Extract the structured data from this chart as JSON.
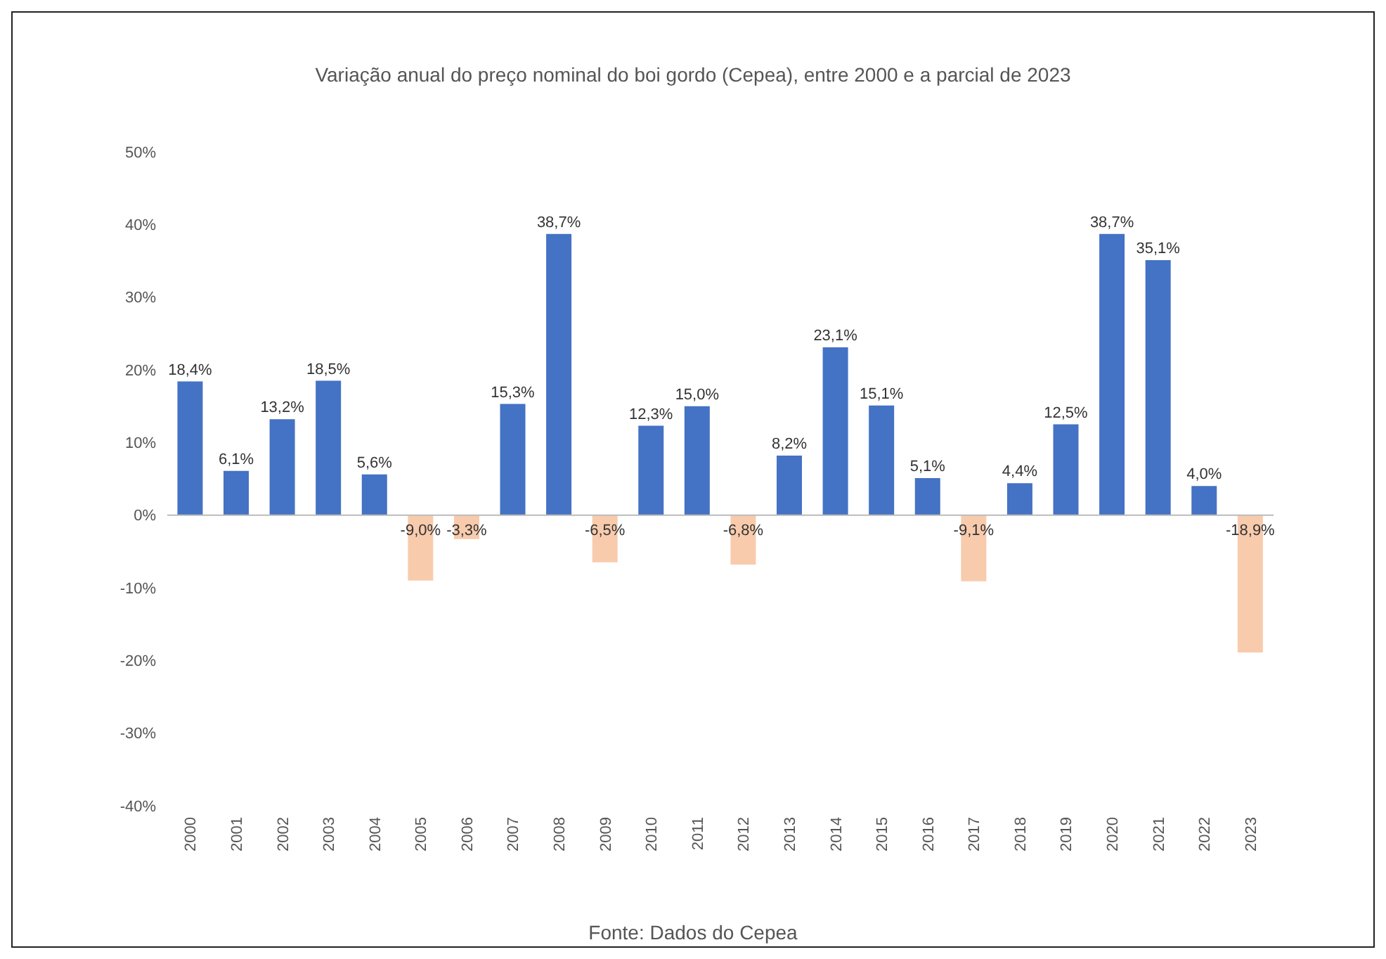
{
  "chart_data": {
    "type": "bar",
    "title": "Variação anual do preço nominal do boi gordo (Cepea), entre 2000 e a parcial de 2023",
    "categories": [
      "2000",
      "2001",
      "2002",
      "2003",
      "2004",
      "2005",
      "2006",
      "2007",
      "2008",
      "2009",
      "2010",
      "2011",
      "2012",
      "2013",
      "2014",
      "2015",
      "2016",
      "2017",
      "2018",
      "2019",
      "2020",
      "2021",
      "2022",
      "2023"
    ],
    "values": [
      18.4,
      6.1,
      13.2,
      18.5,
      5.6,
      -9.0,
      -3.3,
      15.3,
      38.7,
      -6.5,
      12.3,
      15.0,
      -6.8,
      8.2,
      23.1,
      15.1,
      5.1,
      -9.1,
      4.4,
      12.5,
      38.7,
      35.1,
      4.0,
      -18.9
    ],
    "value_labels": [
      "18,4%",
      "6,1%",
      "13,2%",
      "18,5%",
      "5,6%",
      "-9,0%",
      "-3,3%",
      "15,3%",
      "38,7%",
      "-6,5%",
      "12,3%",
      "15,0%",
      "-6,8%",
      "8,2%",
      "23,1%",
      "15,1%",
      "5,1%",
      "-9,1%",
      "4,4%",
      "12,5%",
      "38,7%",
      "35,1%",
      "4,0%",
      "-18,9%"
    ],
    "colors": [
      "#4472c4",
      "#4472c4",
      "#4472c4",
      "#4472c4",
      "#4472c4",
      "#f8cbad",
      "#f8cbad",
      "#4472c4",
      "#4472c4",
      "#f8cbad",
      "#4472c4",
      "#4472c4",
      "#f8cbad",
      "#4472c4",
      "#4472c4",
      "#4472c4",
      "#4472c4",
      "#f8cbad",
      "#4472c4",
      "#4472c4",
      "#4472c4",
      "#4472c4",
      "#4472c4",
      "#f8cbad"
    ],
    "ylim": [
      -40,
      50
    ],
    "yticks": [
      {
        "value": -40,
        "label": "-40%"
      },
      {
        "value": -30,
        "label": "-30%"
      },
      {
        "value": -20,
        "label": "-20%"
      },
      {
        "value": -10,
        "label": "-10%"
      },
      {
        "value": 0,
        "label": "0%"
      },
      {
        "value": 10,
        "label": "10%"
      },
      {
        "value": 20,
        "label": "20%"
      },
      {
        "value": 30,
        "label": "30%"
      },
      {
        "value": 40,
        "label": "40%"
      },
      {
        "value": 50,
        "label": "50%"
      }
    ],
    "legend": false,
    "annotations": [
      "Fonte: Dados do Cepea"
    ]
  }
}
